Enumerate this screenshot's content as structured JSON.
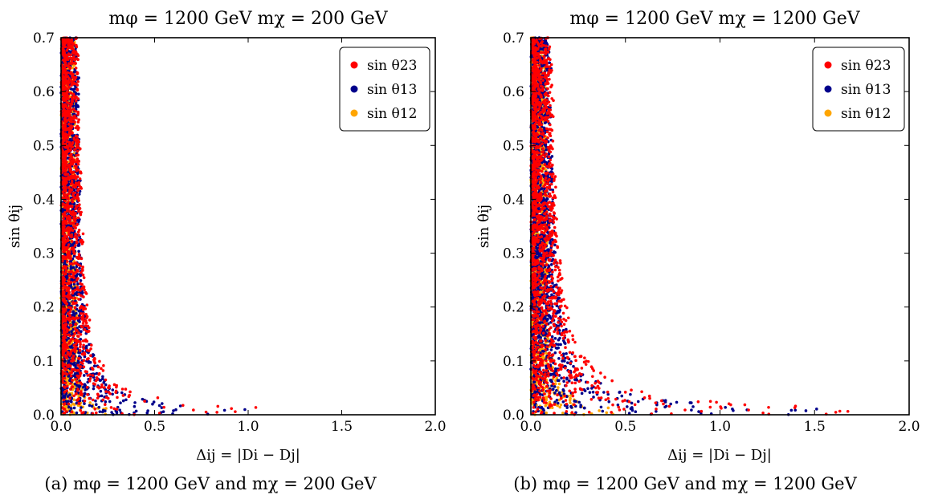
{
  "colors": {
    "sin_theta_23": "#ff0000",
    "sin_theta_13": "#00008b",
    "sin_theta_12": "#ffa500"
  },
  "chart_data": [
    {
      "type": "scatter",
      "title": "mφ = 1200 GeV     mχ = 200 GeV",
      "caption": "(a) mφ = 1200 GeV and mχ = 200 GeV",
      "xlabel": "Δij = |Di − Dj|",
      "ylabel": "sin θij",
      "xlim": [
        0.0,
        2.0
      ],
      "ylim": [
        0.0,
        0.7
      ],
      "xticks": [
        "0.0",
        "0.5",
        "1.0",
        "1.5",
        "2.0"
      ],
      "yticks": [
        "0.0",
        "0.1",
        "0.2",
        "0.3",
        "0.4",
        "0.5",
        "0.6",
        "0.7"
      ],
      "legend_position": "top-right",
      "grid": false,
      "series": [
        {
          "name": "sin θ23",
          "color": "#ff0000",
          "n": 1300,
          "spread": 0.34
        },
        {
          "name": "sin θ13",
          "color": "#00008b",
          "n": 1500,
          "spread": 0.27
        },
        {
          "name": "sin θ12",
          "color": "#ffa500",
          "n": 1400,
          "spread": 0.05
        }
      ]
    },
    {
      "type": "scatter",
      "title": "mφ = 1200 GeV     mχ = 1200 GeV",
      "caption": "(b) mφ = 1200 GeV and mχ = 1200 GeV",
      "xlabel": "Δij = |Di − Dj|",
      "ylabel": "sin θij",
      "xlim": [
        0.0,
        2.0
      ],
      "ylim": [
        0.0,
        0.7
      ],
      "xticks": [
        "0.0",
        "0.5",
        "1.0",
        "1.5",
        "2.0"
      ],
      "yticks": [
        "0.0",
        "0.1",
        "0.2",
        "0.3",
        "0.4",
        "0.5",
        "0.6",
        "0.7"
      ],
      "legend_position": "top-right",
      "grid": false,
      "series": [
        {
          "name": "sin θ23",
          "color": "#ff0000",
          "n": 1500,
          "spread": 0.55
        },
        {
          "name": "sin θ13",
          "color": "#00008b",
          "n": 1700,
          "spread": 0.42
        },
        {
          "name": "sin θ12",
          "color": "#ffa500",
          "n": 1500,
          "spread": 0.12
        }
      ]
    }
  ]
}
